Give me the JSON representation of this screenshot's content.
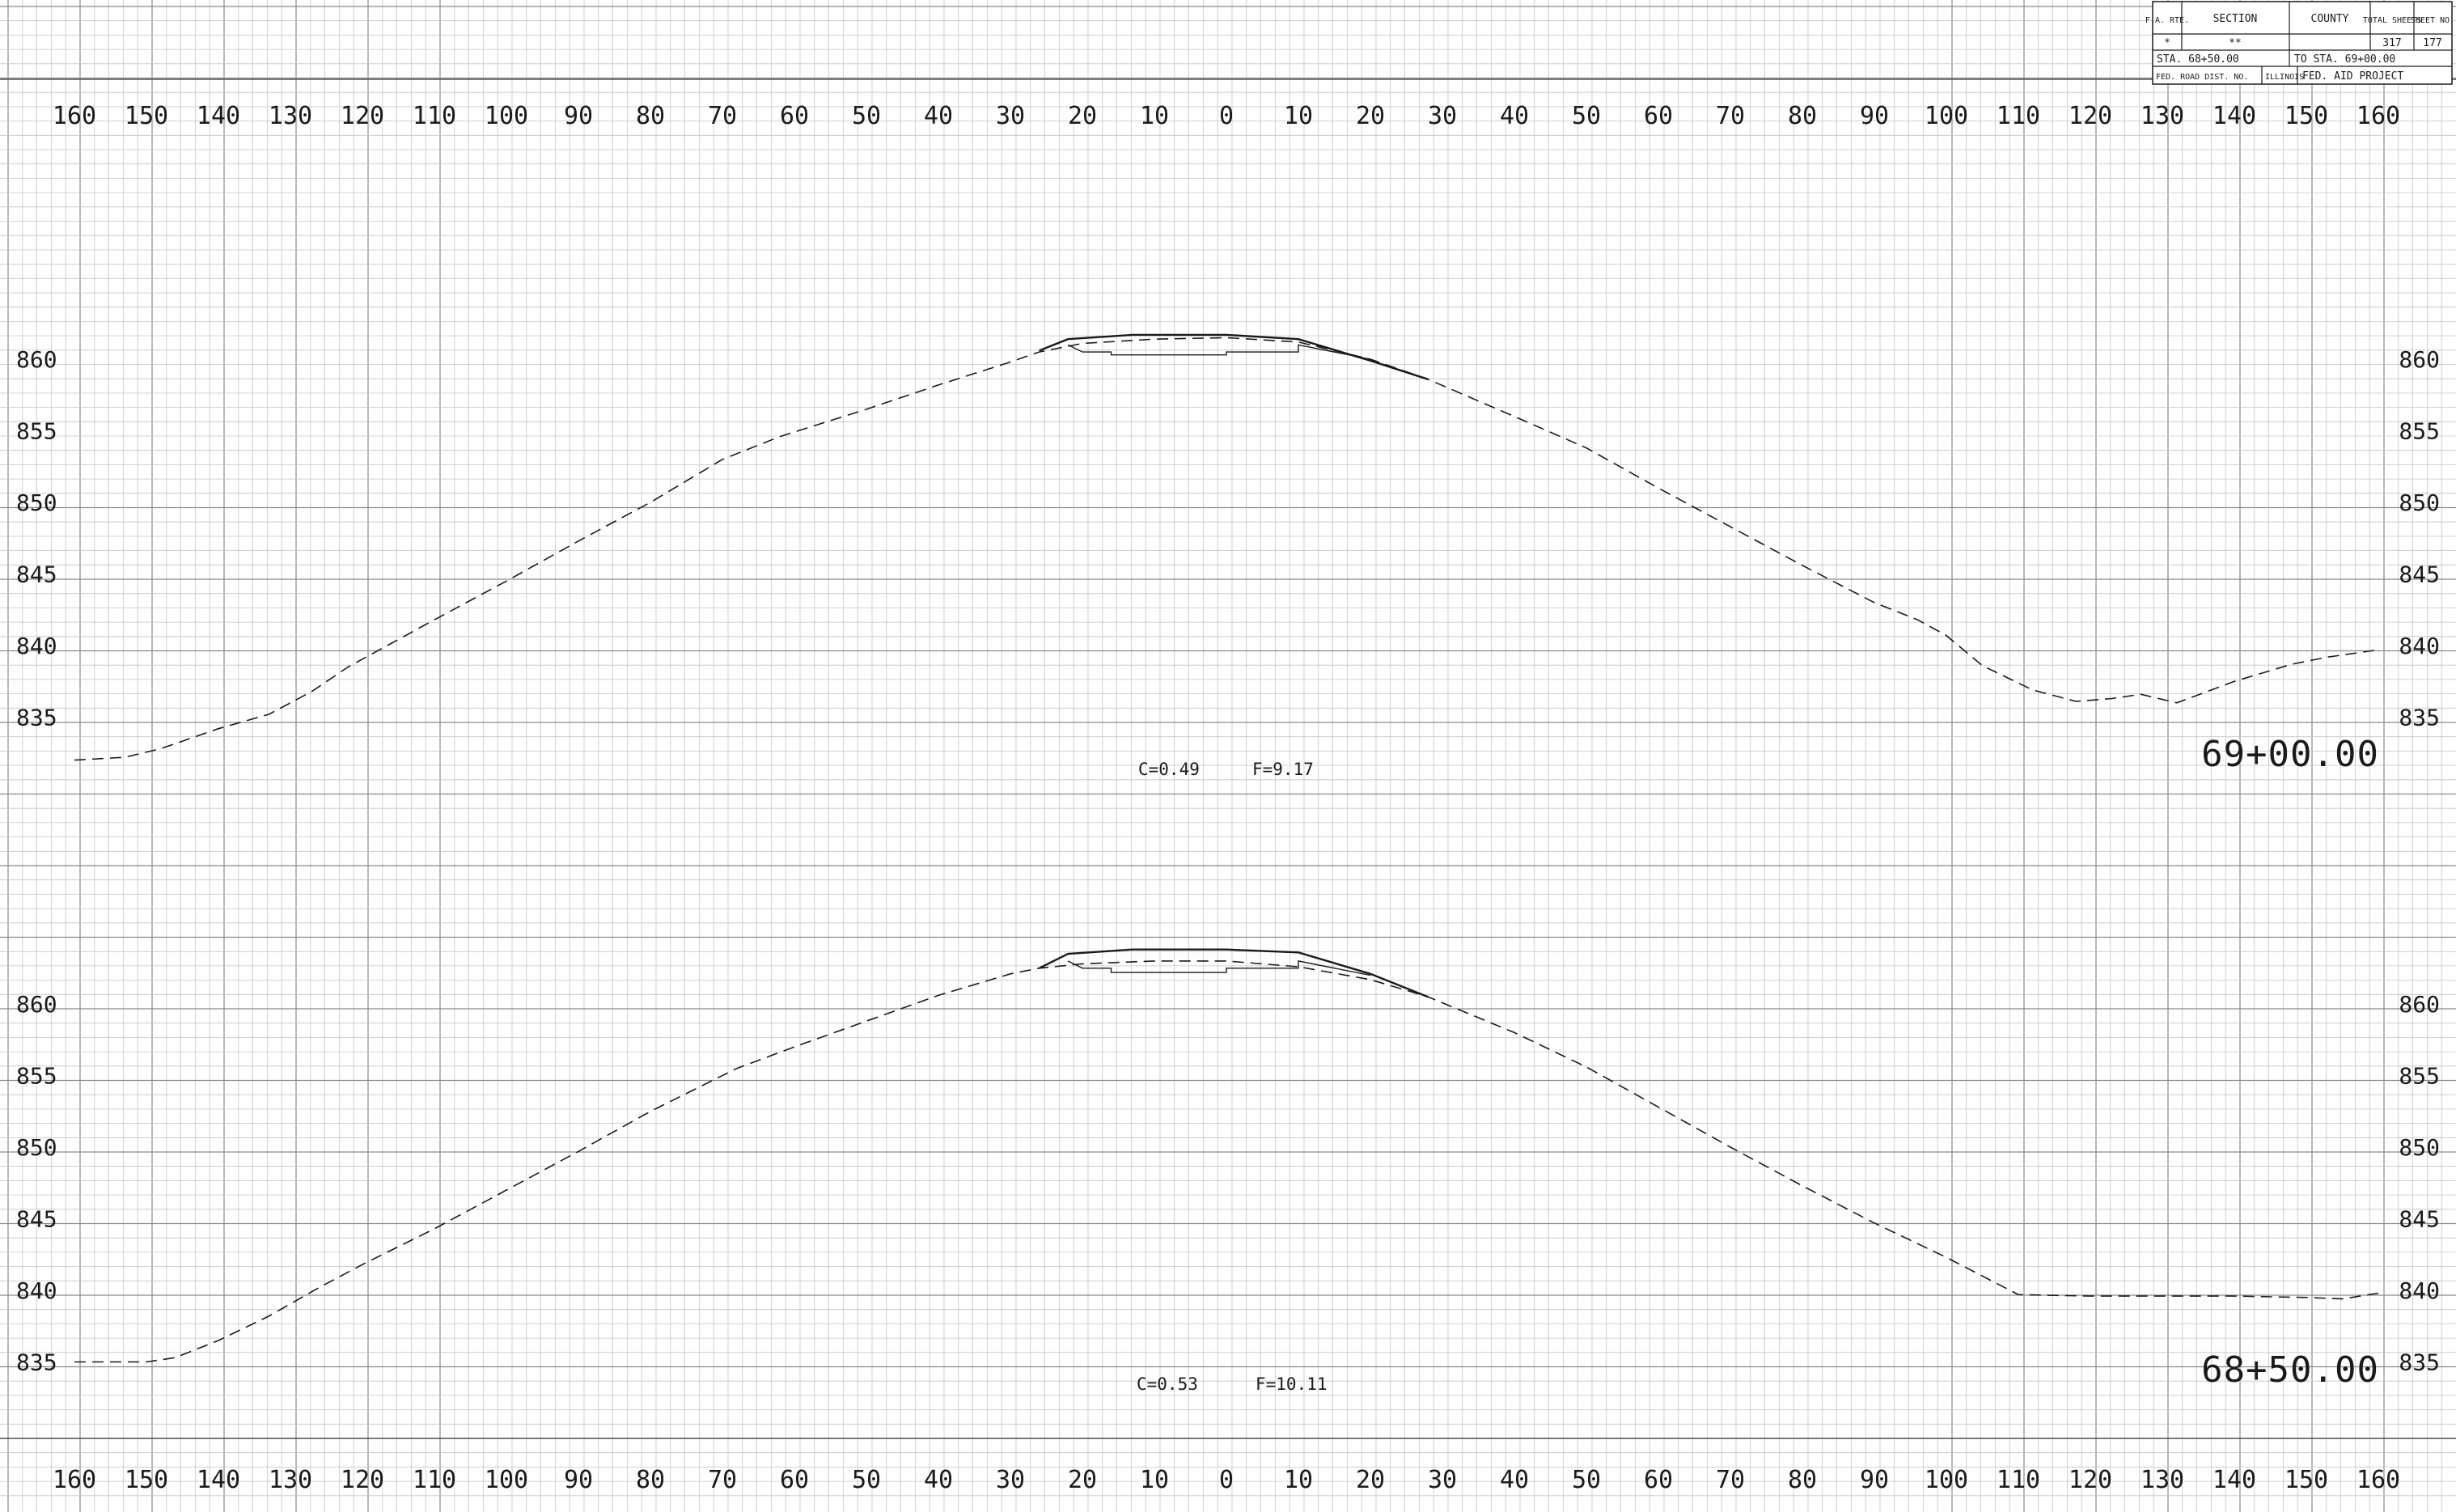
{
  "title_block": {
    "fa_rte_label": "F.A. RTE.",
    "section_label": "SECTION",
    "county_label": "COUNTY",
    "total_sheets_label": "TOTAL SHEETS",
    "sheet_no_label": "SHEET NO.",
    "fa_rte_value": "*",
    "section_value": "**",
    "county_value": "",
    "total_sheets_value": "317",
    "sheet_no_value": "177",
    "station_from": "STA. 68+50.00",
    "station_to": "TO STA. 69+00.00",
    "fed_road_dist": "FED. ROAD DIST. NO.",
    "state": "ILLINOIS",
    "fed_aid_project": "FED. AID PROJECT"
  },
  "offset_scale": {
    "labels": [
      "160",
      "150",
      "140",
      "130",
      "120",
      "110",
      "100",
      "90",
      "80",
      "70",
      "60",
      "50",
      "40",
      "30",
      "20",
      "10",
      "0",
      "10",
      "20",
      "30",
      "40",
      "50",
      "60",
      "70",
      "80",
      "90",
      "100",
      "110",
      "120",
      "130",
      "140",
      "150",
      "160"
    ],
    "values": [
      -160,
      -150,
      -140,
      -130,
      -120,
      -110,
      -100,
      -90,
      -80,
      -70,
      -60,
      -50,
      -40,
      -30,
      -20,
      -10,
      0,
      10,
      20,
      30,
      40,
      50,
      60,
      70,
      80,
      90,
      100,
      110,
      120,
      130,
      140,
      150,
      160
    ]
  },
  "chart_data": [
    {
      "type": "line",
      "station": "69+00.00",
      "cut_label": "C=0.49",
      "fill_label": "F=9.17",
      "elevation_labels": [
        "860",
        "855",
        "850",
        "845",
        "840",
        "835"
      ],
      "elevation_values": [
        860,
        855,
        850,
        845,
        840,
        835
      ],
      "xlim": [
        -160,
        160
      ],
      "ylim": [
        833,
        863
      ],
      "existing_ground": {
        "x": [
          -160,
          -153,
          -148,
          -140,
          -133,
          -127,
          -122,
          -110,
          -100,
          -90,
          -80,
          -70,
          -62,
          -50,
          -40,
          -30,
          -26,
          -20,
          -10,
          0,
          10,
          20,
          28,
          40,
          50,
          60,
          70,
          80,
          90,
          96,
          100,
          105,
          112,
          118,
          123,
          127,
          132,
          140,
          148,
          153,
          160
        ],
        "y": [
          832.0,
          832.2,
          832.8,
          834.2,
          835.2,
          836.8,
          838.5,
          841.8,
          844.5,
          847.3,
          850.0,
          853.0,
          854.6,
          856.5,
          858.2,
          859.8,
          860.5,
          861.1,
          861.4,
          861.5,
          861.2,
          860.0,
          858.6,
          856.0,
          853.8,
          851.0,
          848.3,
          845.6,
          843.0,
          841.8,
          840.7,
          838.6,
          836.9,
          836.1,
          836.3,
          836.6,
          836.0,
          837.5,
          838.7,
          839.2,
          839.7
        ]
      },
      "proposed_surface": {
        "x": [
          -26,
          -22,
          -13,
          0,
          10,
          20,
          28
        ],
        "y": [
          860.6,
          861.4,
          861.7,
          861.7,
          861.4,
          859.9,
          858.6
        ]
      },
      "pavement_bottom": {
        "x": [
          -22,
          -20,
          -16,
          -16,
          0,
          0,
          10,
          10,
          20
        ],
        "y": [
          861.0,
          860.5,
          860.5,
          860.3,
          860.3,
          860.5,
          860.5,
          861.0,
          860.0
        ]
      }
    },
    {
      "type": "line",
      "station": "68+50.00",
      "cut_label": "C=0.53",
      "fill_label": "F=10.11",
      "elevation_labels": [
        "860",
        "855",
        "850",
        "845",
        "840",
        "835"
      ],
      "elevation_values": [
        860,
        855,
        850,
        845,
        840,
        835
      ],
      "xlim": [
        -160,
        160
      ],
      "ylim": [
        833,
        863
      ],
      "existing_ground": {
        "x": [
          -160,
          -153,
          -150,
          -146,
          -140,
          -133,
          -126,
          -120,
          -110,
          -100,
          -90,
          -80,
          -68,
          -60,
          -50,
          -40,
          -30,
          -26,
          -20,
          -10,
          0,
          10,
          20,
          28,
          40,
          50,
          60,
          70,
          80,
          90,
          100,
          105,
          110,
          120,
          130,
          140,
          150,
          155,
          160
        ],
        "y": [
          835.0,
          835.0,
          835.0,
          835.3,
          836.5,
          838.2,
          840.2,
          841.8,
          844.3,
          847.0,
          849.7,
          852.5,
          855.5,
          857.0,
          858.8,
          860.6,
          862.1,
          862.5,
          862.8,
          863.0,
          863.0,
          862.6,
          861.7,
          860.5,
          858.0,
          855.6,
          852.8,
          850.0,
          847.3,
          844.7,
          842.3,
          841.0,
          839.7,
          839.6,
          839.6,
          839.6,
          839.5,
          839.4,
          839.8
        ]
      },
      "proposed_surface": {
        "x": [
          -26,
          -22,
          -13,
          0,
          10,
          20,
          28
        ],
        "y": [
          862.5,
          863.5,
          863.8,
          863.8,
          863.6,
          862.1,
          860.5
        ]
      },
      "pavement_bottom": {
        "x": [
          -22,
          -20,
          -16,
          -16,
          0,
          0,
          10,
          10,
          20
        ],
        "y": [
          863.0,
          862.5,
          862.5,
          862.2,
          862.2,
          862.5,
          862.5,
          863.0,
          862.0
        ]
      }
    }
  ]
}
